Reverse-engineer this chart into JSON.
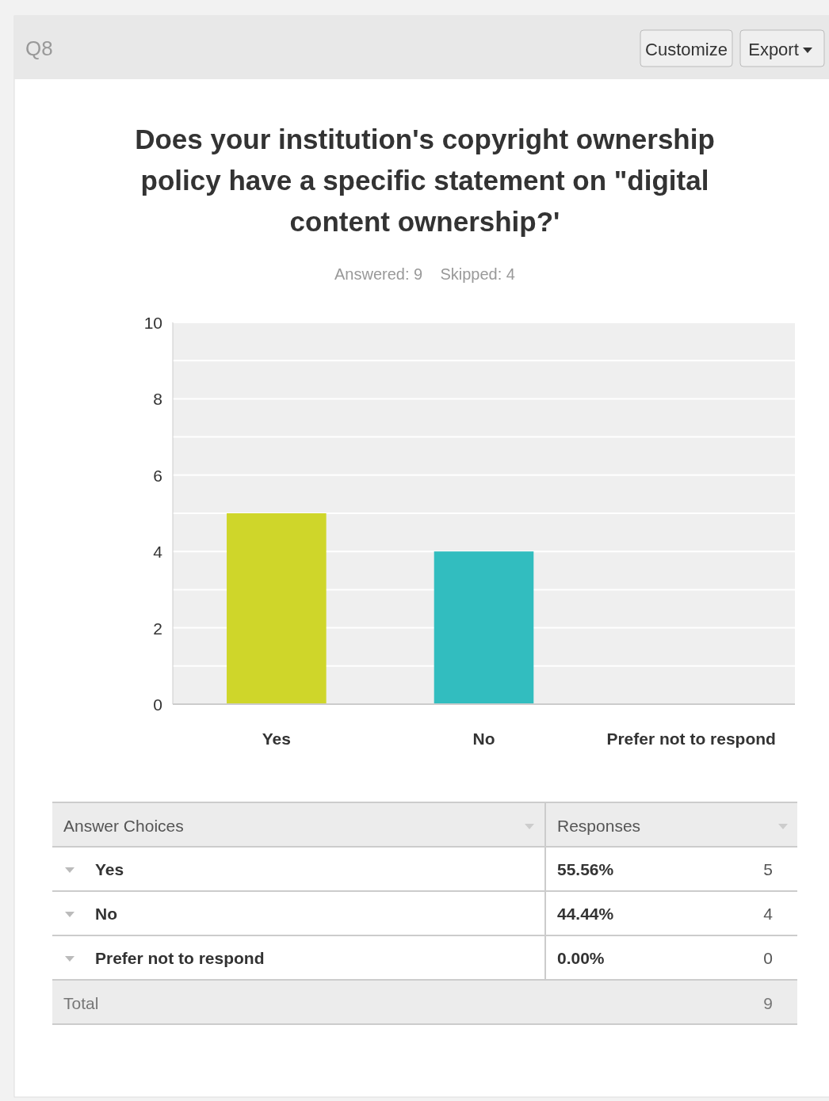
{
  "chart_data": {
    "type": "bar",
    "title": "Does your institution's copyright ownership policy have a specific statement on \"digital content ownership?'",
    "subtitle": "Answered: 9    Skipped: 4",
    "categories": [
      "Yes",
      "No",
      "Prefer not to respond"
    ],
    "values": [
      5,
      4,
      0
    ],
    "colors": [
      "#cfd62a",
      "#32bdbf",
      "#f4b541"
    ],
    "ylim": [
      0,
      10
    ],
    "yticks": [
      0,
      {
        "value": 1,
        "label": null
      },
      2,
      {
        "value": 3,
        "label": null
      },
      4,
      {
        "value": 5,
        "label": null
      },
      6,
      {
        "value": 7,
        "label": null
      },
      8,
      {
        "value": 9,
        "label": null
      },
      10
    ],
    "grid": "y",
    "annotations": [
      "Q8",
      "Customize",
      "Export",
      "Answer Choices",
      "Responses",
      "55.56%",
      "44.44%",
      "0.00%",
      "5",
      "4",
      "0",
      "Total",
      "9"
    ]
  }
}
